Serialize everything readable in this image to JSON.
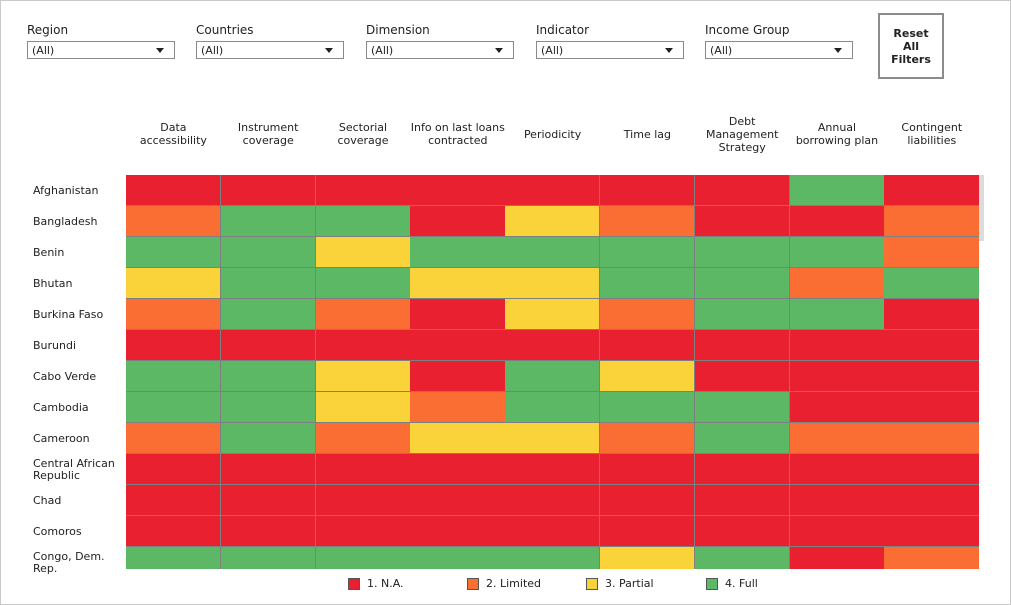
{
  "filters": [
    {
      "label": "Region",
      "value": "(All)"
    },
    {
      "label": "Countries",
      "value": "(All)"
    },
    {
      "label": "Dimension",
      "value": "(All)"
    },
    {
      "label": "Indicator",
      "value": "(All)"
    },
    {
      "label": "Income Group",
      "value": "(All)"
    }
  ],
  "reset_button": {
    "label": "Reset All Filters"
  },
  "colors": {
    "1. N.A.": "#e8202f",
    "2. Limited": "#fb6e33",
    "3. Partial": "#fad33b",
    "4. Full": "#5db865"
  },
  "chart_data": {
    "type": "heatmap",
    "columns": [
      "Data accessibility",
      "Instrument coverage",
      "Sectorial coverage",
      "Info on last loans contracted",
      "Periodicity",
      "Time lag",
      "Debt Management Strategy",
      "Annual borrowing plan",
      "Contingent liabilities"
    ],
    "rows": [
      "Afghanistan",
      "Bangladesh",
      "Benin",
      "Bhutan",
      "Burkina Faso",
      "Burundi",
      "Cabo Verde",
      "Cambodia",
      "Cameroon",
      "Central African Republic",
      "Chad",
      "Comoros",
      "Congo, Dem. Rep."
    ],
    "levels": [
      "1. N.A.",
      "2. Limited",
      "3. Partial",
      "4. Full"
    ],
    "values": [
      [
        1,
        1,
        1,
        1,
        1,
        1,
        1,
        4,
        1
      ],
      [
        2,
        4,
        4,
        1,
        3,
        2,
        1,
        1,
        2
      ],
      [
        4,
        4,
        3,
        4,
        4,
        4,
        4,
        4,
        2
      ],
      [
        3,
        4,
        4,
        3,
        3,
        4,
        4,
        2,
        4
      ],
      [
        2,
        4,
        2,
        1,
        3,
        2,
        4,
        4,
        1
      ],
      [
        1,
        1,
        1,
        1,
        1,
        1,
        1,
        1,
        1
      ],
      [
        4,
        4,
        3,
        1,
        4,
        3,
        1,
        1,
        1
      ],
      [
        4,
        4,
        3,
        2,
        4,
        4,
        4,
        1,
        1
      ],
      [
        2,
        4,
        2,
        3,
        3,
        2,
        4,
        2,
        2
      ],
      [
        1,
        1,
        1,
        1,
        1,
        1,
        1,
        1,
        1
      ],
      [
        1,
        1,
        1,
        1,
        1,
        1,
        1,
        1,
        1
      ],
      [
        1,
        1,
        1,
        1,
        1,
        1,
        1,
        1,
        1
      ],
      [
        4,
        4,
        4,
        4,
        4,
        3,
        4,
        1,
        2
      ]
    ],
    "legend": [
      "1. N.A.",
      "2. Limited",
      "3. Partial",
      "4. Full"
    ]
  }
}
